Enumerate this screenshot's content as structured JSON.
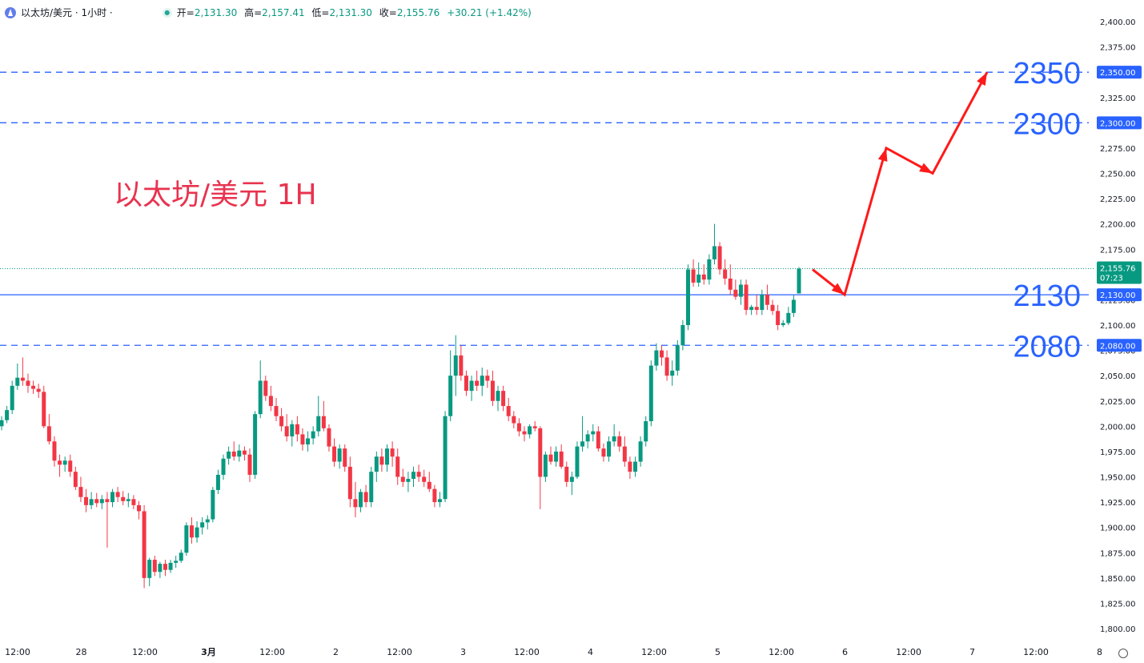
{
  "header": {
    "symbol": "以太坊/美元 · 1小时 ·",
    "open_label": "开=",
    "open": "2,131.30",
    "high_label": "高=",
    "high": "2,157.41",
    "low_label": "低=",
    "low": "2,131.30",
    "close_label": "收=",
    "close": "2,155.76",
    "change": "+30.21 (+1.42%)"
  },
  "annotation_title": "以太坊/美元 1H",
  "colors": {
    "up": "#089981",
    "down": "#f23645",
    "level_line": "#2962ff",
    "arrow": "#ff1a1a",
    "title": "#e8334f"
  },
  "chart_data": {
    "type": "candlestick",
    "y_axis": {
      "min": 1800,
      "max": 2400,
      "step": 25,
      "tick_labels": [
        "2,400.00",
        "2,375.00",
        "2,350.00",
        "2,325.00",
        "2,300.00",
        "2,275.00",
        "2,250.00",
        "2,225.00",
        "2,200.00",
        "2,175.00",
        "2,150.00",
        "2,125.00",
        "2,100.00",
        "2,075.00",
        "2,050.00",
        "2,025.00",
        "2,000.00",
        "1,975.00",
        "1,950.00",
        "1,925.00",
        "1,900.00",
        "1,875.00",
        "1,850.00",
        "1,825.00",
        "1,800.00"
      ]
    },
    "x_axis": {
      "tick_labels": [
        "12:00",
        "28",
        "12:00",
        "3月",
        "12:00",
        "2",
        "12:00",
        "3",
        "12:00",
        "4",
        "12:00",
        "5",
        "12:00",
        "6",
        "12:00",
        "7",
        "12:00",
        "8"
      ]
    },
    "levels": [
      {
        "value": 2350,
        "label": "2350",
        "axis_label": "2,350.00",
        "style": "dashed"
      },
      {
        "value": 2300,
        "label": "2300",
        "axis_label": "2,300.00",
        "style": "dashed"
      },
      {
        "value": 2130,
        "label": "2130",
        "axis_label": "2,130.00",
        "style": "solid"
      },
      {
        "value": 2080,
        "label": "2080",
        "axis_label": "2,080.00",
        "style": "dashed"
      }
    ],
    "last_price": {
      "value": 2155.76,
      "label": "2,155.76",
      "countdown": "07:23"
    },
    "projection_path": [
      2155,
      2130,
      2275,
      2250,
      2350
    ],
    "candles": [
      [
        2000,
        2010,
        1996,
        2006
      ],
      [
        2006,
        2020,
        2003,
        2016
      ],
      [
        2016,
        2045,
        2012,
        2040
      ],
      [
        2040,
        2062,
        2036,
        2048
      ],
      [
        2048,
        2068,
        2040,
        2045
      ],
      [
        2045,
        2052,
        2033,
        2040
      ],
      [
        2040,
        2045,
        2032,
        2037
      ],
      [
        2037,
        2042,
        2028,
        2034
      ],
      [
        2034,
        2040,
        1998,
        2000
      ],
      [
        2000,
        2012,
        1982,
        1985
      ],
      [
        1985,
        1990,
        1960,
        1966
      ],
      [
        1966,
        1972,
        1950,
        1962
      ],
      [
        1962,
        1970,
        1955,
        1966
      ],
      [
        1966,
        1972,
        1950,
        1955
      ],
      [
        1955,
        1960,
        1937,
        1940
      ],
      [
        1940,
        1950,
        1925,
        1930
      ],
      [
        1930,
        1938,
        1915,
        1922
      ],
      [
        1922,
        1935,
        1918,
        1928
      ],
      [
        1928,
        1934,
        1920,
        1924
      ],
      [
        1924,
        1932,
        1918,
        1928
      ],
      [
        1928,
        1935,
        1880,
        1925
      ],
      [
        1925,
        1938,
        1920,
        1935
      ],
      [
        1935,
        1940,
        1925,
        1930
      ],
      [
        1930,
        1936,
        1922,
        1926
      ],
      [
        1926,
        1934,
        1920,
        1928
      ],
      [
        1928,
        1932,
        1918,
        1922
      ],
      [
        1922,
        1926,
        1908,
        1916
      ],
      [
        1916,
        1922,
        1840,
        1850
      ],
      [
        1850,
        1870,
        1842,
        1868
      ],
      [
        1868,
        1872,
        1852,
        1856
      ],
      [
        1856,
        1866,
        1850,
        1864
      ],
      [
        1864,
        1868,
        1852,
        1858
      ],
      [
        1858,
        1868,
        1855,
        1865
      ],
      [
        1865,
        1872,
        1860,
        1867
      ],
      [
        1867,
        1878,
        1865,
        1875
      ],
      [
        1875,
        1905,
        1872,
        1902
      ],
      [
        1902,
        1910,
        1884,
        1890
      ],
      [
        1890,
        1906,
        1885,
        1900
      ],
      [
        1900,
        1910,
        1893,
        1905
      ],
      [
        1905,
        1912,
        1898,
        1908
      ],
      [
        1908,
        1940,
        1905,
        1937
      ],
      [
        1937,
        1957,
        1933,
        1952
      ],
      [
        1952,
        1972,
        1947,
        1968
      ],
      [
        1968,
        1980,
        1962,
        1975
      ],
      [
        1975,
        1985,
        1966,
        1970
      ],
      [
        1970,
        1982,
        1965,
        1976
      ],
      [
        1976,
        1980,
        1966,
        1972
      ],
      [
        1972,
        1978,
        1945,
        1952
      ],
      [
        1952,
        2015,
        1948,
        2012
      ],
      [
        2012,
        2065,
        2008,
        2045
      ],
      [
        2045,
        2050,
        2025,
        2030
      ],
      [
        2030,
        2040,
        2015,
        2020
      ],
      [
        2020,
        2028,
        2005,
        2010
      ],
      [
        2010,
        2018,
        1995,
        2000
      ],
      [
        2000,
        2012,
        1985,
        1990
      ],
      [
        1990,
        2006,
        1980,
        2002
      ],
      [
        2002,
        2010,
        1985,
        1992
      ],
      [
        1992,
        1998,
        1976,
        1982
      ],
      [
        1982,
        1995,
        1975,
        1988
      ],
      [
        1988,
        2000,
        1982,
        1995
      ],
      [
        1995,
        2030,
        1990,
        2010
      ],
      [
        2010,
        2025,
        1995,
        1998
      ],
      [
        1998,
        2002,
        1975,
        1980
      ],
      [
        1980,
        1988,
        1960,
        1965
      ],
      [
        1965,
        1982,
        1958,
        1978
      ],
      [
        1978,
        1982,
        1955,
        1960
      ],
      [
        1960,
        1970,
        1920,
        1928
      ],
      [
        1928,
        1945,
        1910,
        1920
      ],
      [
        1920,
        1938,
        1915,
        1935
      ],
      [
        1935,
        1942,
        1920,
        1925
      ],
      [
        1925,
        1960,
        1920,
        1955
      ],
      [
        1955,
        1975,
        1945,
        1970
      ],
      [
        1970,
        1978,
        1955,
        1962
      ],
      [
        1962,
        1982,
        1955,
        1978
      ],
      [
        1978,
        1985,
        1960,
        1970
      ],
      [
        1970,
        1978,
        1942,
        1950
      ],
      [
        1950,
        1958,
        1940,
        1945
      ],
      [
        1945,
        1955,
        1935,
        1948
      ],
      [
        1948,
        1960,
        1940,
        1955
      ],
      [
        1955,
        1962,
        1945,
        1950
      ],
      [
        1950,
        1957,
        1940,
        1945
      ],
      [
        1945,
        1955,
        1935,
        1938
      ],
      [
        1938,
        1942,
        1920,
        1925
      ],
      [
        1925,
        1935,
        1920,
        1928
      ],
      [
        1928,
        2015,
        1925,
        2010
      ],
      [
        2010,
        2075,
        2005,
        2050
      ],
      [
        2050,
        2090,
        2030,
        2070
      ],
      [
        2070,
        2080,
        2045,
        2050
      ],
      [
        2050,
        2055,
        2030,
        2035
      ],
      [
        2035,
        2050,
        2025,
        2045
      ],
      [
        2045,
        2055,
        2035,
        2040
      ],
      [
        2040,
        2058,
        2030,
        2050
      ],
      [
        2050,
        2056,
        2038,
        2045
      ],
      [
        2045,
        2055,
        2020,
        2025
      ],
      [
        2025,
        2040,
        2015,
        2035
      ],
      [
        2035,
        2040,
        2015,
        2020
      ],
      [
        2020,
        2028,
        2005,
        2010
      ],
      [
        2010,
        2015,
        1998,
        2003
      ],
      [
        2003,
        2008,
        1990,
        1995
      ],
      [
        1995,
        2000,
        1985,
        1992
      ],
      [
        1992,
        2002,
        1988,
        2000
      ],
      [
        2000,
        2005,
        1995,
        1998
      ],
      [
        1998,
        2000,
        1918,
        1950
      ],
      [
        1950,
        1975,
        1945,
        1972
      ],
      [
        1972,
        1980,
        1962,
        1965
      ],
      [
        1965,
        1980,
        1960,
        1975
      ],
      [
        1975,
        1982,
        1958,
        1960
      ],
      [
        1960,
        1965,
        1940,
        1945
      ],
      [
        1945,
        1955,
        1932,
        1950
      ],
      [
        1950,
        1985,
        1948,
        1980
      ],
      [
        1980,
        2010,
        1975,
        1985
      ],
      [
        1985,
        1996,
        1978,
        1992
      ],
      [
        1992,
        2002,
        1985,
        1995
      ],
      [
        1995,
        2000,
        1975,
        1978
      ],
      [
        1978,
        1983,
        1965,
        1970
      ],
      [
        1970,
        1990,
        1965,
        1985
      ],
      [
        1985,
        2002,
        1980,
        1990
      ],
      [
        1990,
        1995,
        1975,
        1980
      ],
      [
        1980,
        1990,
        1960,
        1965
      ],
      [
        1965,
        1970,
        1948,
        1955
      ],
      [
        1955,
        1970,
        1950,
        1965
      ],
      [
        1965,
        1990,
        1960,
        1985
      ],
      [
        1985,
        2010,
        1980,
        2005
      ],
      [
        2005,
        2065,
        2000,
        2060
      ],
      [
        2060,
        2082,
        2055,
        2075
      ],
      [
        2075,
        2080,
        2060,
        2068
      ],
      [
        2068,
        2075,
        2045,
        2050
      ],
      [
        2050,
        2065,
        2040,
        2055
      ],
      [
        2055,
        2085,
        2050,
        2080
      ],
      [
        2080,
        2105,
        2075,
        2100
      ],
      [
        2100,
        2160,
        2095,
        2155
      ],
      [
        2155,
        2165,
        2138,
        2142
      ],
      [
        2142,
        2162,
        2138,
        2150
      ],
      [
        2150,
        2160,
        2140,
        2145
      ],
      [
        2145,
        2170,
        2140,
        2165
      ],
      [
        2165,
        2200,
        2160,
        2178
      ],
      [
        2178,
        2182,
        2150,
        2155
      ],
      [
        2155,
        2165,
        2140,
        2146
      ],
      [
        2146,
        2160,
        2130,
        2135
      ],
      [
        2135,
        2145,
        2125,
        2128
      ],
      [
        2128,
        2145,
        2120,
        2140
      ],
      [
        2140,
        2145,
        2110,
        2115
      ],
      [
        2115,
        2120,
        2110,
        2118
      ],
      [
        2118,
        2130,
        2110,
        2115
      ],
      [
        2115,
        2135,
        2110,
        2130
      ],
      [
        2130,
        2140,
        2115,
        2120
      ],
      [
        2120,
        2125,
        2110,
        2114
      ],
      [
        2114,
        2120,
        2095,
        2100
      ],
      [
        2100,
        2105,
        2098,
        2102
      ],
      [
        2102,
        2118,
        2100,
        2112
      ],
      [
        2112,
        2130,
        2108,
        2125
      ],
      [
        2131.3,
        2157.41,
        2131.3,
        2155.76
      ]
    ]
  }
}
